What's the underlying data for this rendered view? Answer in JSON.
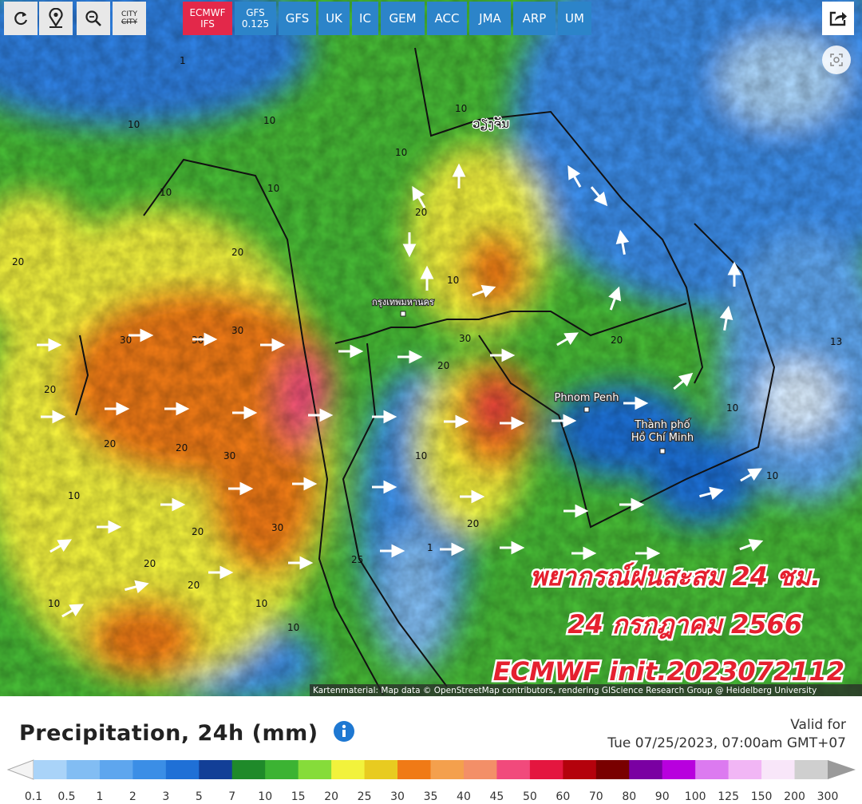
{
  "toolbar": {
    "city": {
      "top": "CITY",
      "bottom": "CITY"
    },
    "models": [
      {
        "name": "ECMWF",
        "sub": "IFS"
      },
      {
        "name": "GFS",
        "sub": "0.125"
      },
      {
        "name": "GFS"
      },
      {
        "name": "UK"
      },
      {
        "name": "IC"
      },
      {
        "name": "GEM"
      },
      {
        "name": "ACC"
      },
      {
        "name": "JMA"
      },
      {
        "name": "ARP"
      },
      {
        "name": "UM"
      }
    ]
  },
  "map": {
    "places": [
      "ວຽງຈັນ",
      "กรุงเทพมหานคร",
      "Phnom Penh",
      "Thành phố",
      "Hồ Chí Minh"
    ],
    "contour_labels": [
      "1",
      "10",
      "10",
      "10",
      "20",
      "20",
      "30",
      "30",
      "30",
      "20",
      "10",
      "20",
      "20",
      "30",
      "30",
      "20",
      "20",
      "10",
      "10",
      "20",
      "10",
      "20",
      "30",
      "20",
      "10",
      "10",
      "10",
      "13",
      "10",
      "1",
      "20",
      "10",
      "25",
      "10",
      "20",
      "10"
    ],
    "overlay": [
      "พยากรณ์ฝนสะสม 24 ชม.",
      "24 กรกฎาคม 2566",
      "ECMWF init.2023072112"
    ],
    "attribution": "Kartenmaterial: Map data © OpenStreetMap contributors, rendering GIScience Research Group @ Heidelberg University"
  },
  "legend": {
    "title": "Precipitation, 24h (mm)",
    "valid_label": "Valid for",
    "valid_time": "Tue 07/25/2023, 07:00am GMT+07",
    "labels": [
      "0.1",
      "0.5",
      "1",
      "2",
      "3",
      "5",
      "7",
      "10",
      "15",
      "20",
      "25",
      "30",
      "35",
      "40",
      "45",
      "50",
      "60",
      "70",
      "80",
      "90",
      "100",
      "125",
      "150",
      "200",
      "300"
    ],
    "colors": [
      "#a9d3f8",
      "#82bdf3",
      "#5ea6ee",
      "#3b8ee6",
      "#1f70d6",
      "#123f97",
      "#1f8a2a",
      "#3cb333",
      "#86dc3a",
      "#f2f23c",
      "#e8cb20",
      "#f07a16",
      "#f4a04d",
      "#f38f68",
      "#f14a7c",
      "#e4163f",
      "#b4020c",
      "#790000",
      "#7a00a2",
      "#b800de",
      "#dc7af0",
      "#f1b6f5",
      "#f8e6f9",
      "#cfcfcf"
    ]
  }
}
